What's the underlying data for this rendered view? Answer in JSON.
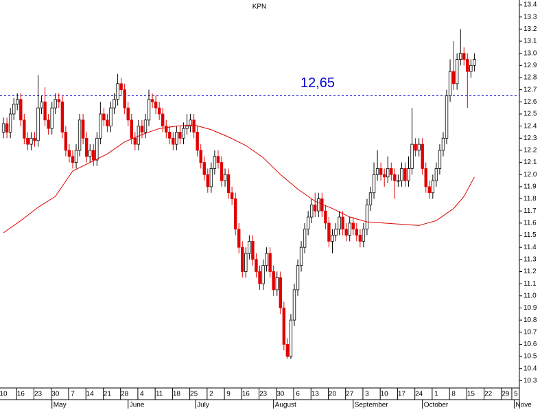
{
  "chart_data": {
    "type": "candlestick",
    "title": "KPN",
    "annotation": "12,65",
    "reference_line": 12.65,
    "reference_color": "#0000cc",
    "up_color": "#ffffff",
    "down_color": "#e00000",
    "ylim": [
      10.24,
      13.44
    ],
    "yticks": [
      13.4,
      13.3,
      13.2,
      13.1,
      {
        "value": 13.0,
        "label": "13.0"
      },
      12.9,
      12.8,
      12.7,
      12.6,
      12.5,
      12.4,
      12.3,
      12.2,
      12.1,
      {
        "value": 12.0,
        "label": "12.0"
      },
      11.9,
      11.8,
      11.7,
      11.6,
      11.5,
      11.4,
      11.3,
      11.2,
      11.1,
      {
        "value": 11.0,
        "label": "11.0"
      },
      10.9,
      10.8,
      10.7,
      10.6,
      10.5,
      10.4,
      10.3
    ],
    "xlim": [
      -1,
      149
    ],
    "xticks": [
      {
        "value": 0,
        "label": "10"
      },
      {
        "value": 5,
        "label": "16"
      },
      {
        "value": 10,
        "label": "23"
      },
      {
        "value": 15,
        "label": "30"
      },
      {
        "value": 20,
        "label": "7"
      },
      {
        "value": 25,
        "label": "14"
      },
      {
        "value": 30,
        "label": "21"
      },
      {
        "value": 35,
        "label": "28"
      },
      {
        "value": 40,
        "label": "4"
      },
      {
        "value": 45,
        "label": "11"
      },
      {
        "value": 50,
        "label": "18"
      },
      {
        "value": 55,
        "label": "25"
      },
      {
        "value": 60,
        "label": "2"
      },
      {
        "value": 65,
        "label": "9"
      },
      {
        "value": 70,
        "label": "16"
      },
      {
        "value": 75,
        "label": "23"
      },
      {
        "value": 80,
        "label": "30"
      },
      {
        "value": 85,
        "label": "6"
      },
      {
        "value": 90,
        "label": "13"
      },
      {
        "value": 95,
        "label": "20"
      },
      {
        "value": 100,
        "label": "27"
      },
      {
        "value": 105,
        "label": "3"
      },
      {
        "value": 110,
        "label": "10"
      },
      {
        "value": 115,
        "label": "17"
      },
      {
        "value": 120,
        "label": "24"
      },
      {
        "value": 125,
        "label": "1"
      },
      {
        "value": 130,
        "label": "8"
      },
      {
        "value": 135,
        "label": "15"
      },
      {
        "value": 140,
        "label": "22"
      },
      {
        "value": 145,
        "label": "29"
      },
      {
        "value": 148,
        "label": "5"
      }
    ],
    "month_ticks": [
      {
        "value": 14,
        "label": "May"
      },
      {
        "value": 36,
        "label": "June"
      },
      {
        "value": 55.5,
        "label": "July"
      },
      {
        "value": 78,
        "label": "August"
      },
      {
        "value": 101,
        "label": "September"
      },
      {
        "value": 121,
        "label": "October"
      },
      {
        "value": 147.5,
        "label": "Nove"
      }
    ],
    "open": [
      12.35,
      12.42,
      12.35,
      12.5,
      12.58,
      12.62,
      12.45,
      12.3,
      12.25,
      12.3,
      12.28,
      12.55,
      12.6,
      12.45,
      12.38,
      12.55,
      12.62,
      12.6,
      12.35,
      12.2,
      12.15,
      12.1,
      12.2,
      12.45,
      12.3,
      12.15,
      12.2,
      12.12,
      12.3,
      12.5,
      12.45,
      12.4,
      12.55,
      12.62,
      12.75,
      12.7,
      12.55,
      12.45,
      12.3,
      12.25,
      12.4,
      12.35,
      12.45,
      12.62,
      12.6,
      12.55,
      12.5,
      12.4,
      12.35,
      12.3,
      12.25,
      12.35,
      12.3,
      12.38,
      12.4,
      12.45,
      12.35,
      12.2,
      12.1,
      12.0,
      11.9,
      12.05,
      12.15,
      12.1,
      11.95,
      12.0,
      11.85,
      11.8,
      11.55,
      11.4,
      11.2,
      11.35,
      11.45,
      11.3,
      11.2,
      11.1,
      11.25,
      11.35,
      11.2,
      11.05,
      11.15,
      10.9,
      10.6,
      10.5,
      10.8,
      11.05,
      11.25,
      11.4,
      11.55,
      11.65,
      11.75,
      11.7,
      11.8,
      11.7,
      11.6,
      11.45,
      11.5,
      11.55,
      11.65,
      11.55,
      11.5,
      11.6,
      11.55,
      11.5,
      11.45,
      11.55,
      11.75,
      11.85,
      12.0,
      12.05,
      12.0,
      11.98,
      12.05,
      12.0,
      11.95,
      11.95,
      12.05,
      11.95,
      12.05,
      12.25,
      12.2,
      12.25,
      12.05,
      11.9,
      11.85,
      11.95,
      12.05,
      12.2,
      12.3,
      12.65,
      12.85,
      12.75,
      12.95,
      13.0,
      12.95,
      12.85,
      12.9
    ],
    "high": [
      12.47,
      12.47,
      12.55,
      12.63,
      12.67,
      12.67,
      12.5,
      12.35,
      12.35,
      12.35,
      12.82,
      12.65,
      12.72,
      12.5,
      12.6,
      12.67,
      12.67,
      12.65,
      12.4,
      12.25,
      12.2,
      12.25,
      12.5,
      12.5,
      12.35,
      12.25,
      12.25,
      12.35,
      12.6,
      12.55,
      12.5,
      12.6,
      12.67,
      12.83,
      12.8,
      12.75,
      12.6,
      12.5,
      12.35,
      12.45,
      12.45,
      12.5,
      12.7,
      12.67,
      12.65,
      12.6,
      12.55,
      12.45,
      12.4,
      12.35,
      12.4,
      12.4,
      12.43,
      12.5,
      12.5,
      12.5,
      12.4,
      12.25,
      12.15,
      12.05,
      12.1,
      12.2,
      12.2,
      12.15,
      12.05,
      12.05,
      11.9,
      11.85,
      11.6,
      11.45,
      11.4,
      11.5,
      11.5,
      11.35,
      11.25,
      11.3,
      11.4,
      11.4,
      11.25,
      11.2,
      11.2,
      10.95,
      10.65,
      10.85,
      11.1,
      11.3,
      11.45,
      11.6,
      11.7,
      11.8,
      11.85,
      11.85,
      11.85,
      11.75,
      11.65,
      11.55,
      11.6,
      11.7,
      11.7,
      11.6,
      11.65,
      11.65,
      11.6,
      11.55,
      11.6,
      11.8,
      11.9,
      12.1,
      12.2,
      12.1,
      12.05,
      12.15,
      12.1,
      12.05,
      12.0,
      12.1,
      12.1,
      12.15,
      12.55,
      12.3,
      12.3,
      12.3,
      12.1,
      11.95,
      12.0,
      12.1,
      12.25,
      12.35,
      12.7,
      12.95,
      13.1,
      13.0,
      13.2,
      13.05,
      13.0,
      12.95,
      13.0
    ],
    "low": [
      12.3,
      12.3,
      12.3,
      12.45,
      12.53,
      12.4,
      12.25,
      12.2,
      12.2,
      12.23,
      12.23,
      12.5,
      12.4,
      12.33,
      12.33,
      12.5,
      12.55,
      12.3,
      12.15,
      12.1,
      12.05,
      12.05,
      12.15,
      12.25,
      12.1,
      12.1,
      12.07,
      12.07,
      12.25,
      12.4,
      12.35,
      12.35,
      12.5,
      12.57,
      12.65,
      12.5,
      12.4,
      12.25,
      12.2,
      12.2,
      12.3,
      12.3,
      12.4,
      12.55,
      12.5,
      12.45,
      12.35,
      12.3,
      12.25,
      12.2,
      12.2,
      12.25,
      12.25,
      12.33,
      12.35,
      12.3,
      12.15,
      12.05,
      11.95,
      11.85,
      11.85,
      12.0,
      12.05,
      11.9,
      11.9,
      11.8,
      11.75,
      11.5,
      11.35,
      11.15,
      11.15,
      11.3,
      11.25,
      11.15,
      11.05,
      11.05,
      11.2,
      11.15,
      11.0,
      11.0,
      10.85,
      10.55,
      10.48,
      10.48,
      10.75,
      11.0,
      11.2,
      11.35,
      11.5,
      11.6,
      11.65,
      11.65,
      11.65,
      11.55,
      11.4,
      11.35,
      11.45,
      11.5,
      11.5,
      11.45,
      11.45,
      11.5,
      11.45,
      11.4,
      11.4,
      11.5,
      11.7,
      11.8,
      11.95,
      11.95,
      11.9,
      11.93,
      11.95,
      11.8,
      11.9,
      11.9,
      11.9,
      11.9,
      12.0,
      12.15,
      12.15,
      12.0,
      11.85,
      11.8,
      11.8,
      11.9,
      12.0,
      12.15,
      12.25,
      12.6,
      12.7,
      12.7,
      12.9,
      12.9,
      12.55,
      12.8,
      12.85
    ],
    "close": [
      12.42,
      12.35,
      12.5,
      12.58,
      12.62,
      12.45,
      12.3,
      12.25,
      12.3,
      12.28,
      12.55,
      12.6,
      12.45,
      12.38,
      12.55,
      12.62,
      12.6,
      12.35,
      12.2,
      12.15,
      12.1,
      12.2,
      12.45,
      12.3,
      12.15,
      12.2,
      12.12,
      12.3,
      12.5,
      12.45,
      12.4,
      12.55,
      12.62,
      12.75,
      12.7,
      12.55,
      12.45,
      12.3,
      12.25,
      12.4,
      12.35,
      12.45,
      12.62,
      12.6,
      12.55,
      12.5,
      12.4,
      12.35,
      12.3,
      12.25,
      12.35,
      12.3,
      12.38,
      12.4,
      12.45,
      12.35,
      12.2,
      12.1,
      12.0,
      11.9,
      12.05,
      12.15,
      12.1,
      11.95,
      12.0,
      11.85,
      11.8,
      11.55,
      11.4,
      11.2,
      11.35,
      11.45,
      11.3,
      11.2,
      11.1,
      11.25,
      11.35,
      11.2,
      11.05,
      11.15,
      10.9,
      10.6,
      10.5,
      10.8,
      11.05,
      11.25,
      11.4,
      11.55,
      11.65,
      11.75,
      11.7,
      11.8,
      11.7,
      11.6,
      11.45,
      11.5,
      11.55,
      11.65,
      11.55,
      11.5,
      11.6,
      11.55,
      11.5,
      11.45,
      11.55,
      11.75,
      11.85,
      12.0,
      12.05,
      12.0,
      11.98,
      12.05,
      12.0,
      11.95,
      11.95,
      12.05,
      11.95,
      12.05,
      12.25,
      12.2,
      12.25,
      12.05,
      11.9,
      11.85,
      11.95,
      12.05,
      12.2,
      12.3,
      12.65,
      12.85,
      12.75,
      12.95,
      13.0,
      12.95,
      12.85,
      12.9,
      12.95
    ],
    "moving_average": {
      "color": "#e00000",
      "x": [
        0,
        5,
        10,
        15,
        20,
        25,
        30,
        35,
        40,
        45,
        50,
        55,
        60,
        65,
        70,
        75,
        80,
        85,
        90,
        95,
        100,
        105,
        110,
        115,
        120,
        125,
        130,
        133,
        136
      ],
      "values": [
        11.52,
        11.62,
        11.73,
        11.82,
        12.03,
        12.1,
        12.17,
        12.27,
        12.33,
        12.38,
        12.4,
        12.41,
        12.37,
        12.31,
        12.24,
        12.14,
        12.0,
        11.88,
        11.78,
        11.72,
        11.65,
        11.61,
        11.6,
        11.59,
        11.58,
        11.62,
        11.72,
        11.82,
        11.98
      ]
    }
  }
}
